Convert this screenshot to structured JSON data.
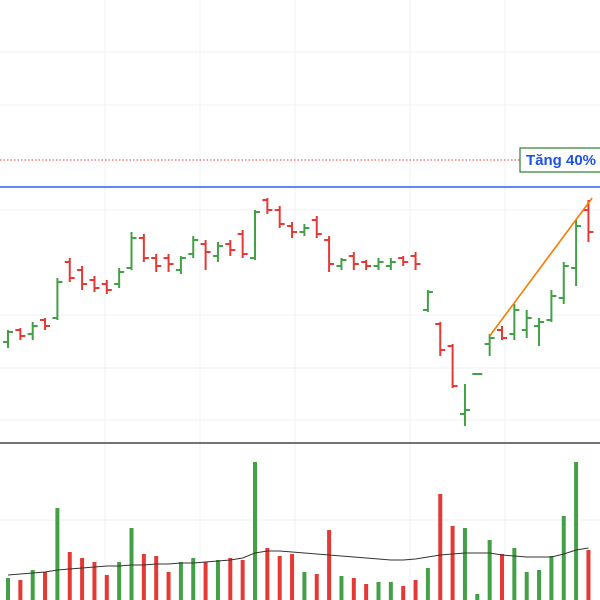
{
  "chart_data": {
    "type": "ohlc",
    "ylim": [
      0,
      440
    ],
    "volume_ylim": [
      0,
      155
    ],
    "up_color": "#43a047",
    "down_color": "#e53935",
    "open": [
      98,
      110,
      106,
      120,
      122,
      178,
      170,
      160,
      156,
      156,
      172,
      202,
      182,
      182,
      170,
      186,
      196,
      184,
      196,
      206,
      182,
      240,
      230,
      214,
      208,
      220,
      200,
      174,
      184,
      178,
      174,
      174,
      182,
      184,
      130,
      116,
      94,
      26,
      66,
      96,
      110,
      106,
      110,
      114,
      120,
      142,
      172,
      230
    ],
    "high": [
      110,
      112,
      118,
      122,
      162,
      182,
      174,
      164,
      160,
      172,
      208,
      206,
      186,
      186,
      184,
      204,
      200,
      198,
      200,
      210,
      230,
      242,
      234,
      218,
      216,
      224,
      204,
      182,
      188,
      180,
      182,
      182,
      184,
      188,
      150,
      118,
      96,
      56,
      67,
      106,
      114,
      136,
      130,
      122,
      150,
      178,
      220,
      240
    ],
    "low": [
      92,
      100,
      100,
      110,
      120,
      158,
      150,
      148,
      146,
      152,
      170,
      178,
      168,
      168,
      166,
      182,
      170,
      178,
      184,
      182,
      180,
      226,
      212,
      202,
      204,
      202,
      168,
      170,
      170,
      170,
      170,
      170,
      174,
      170,
      128,
      84,
      52,
      14,
      65,
      84,
      100,
      100,
      102,
      94,
      118,
      136,
      154,
      198
    ],
    "close": [
      108,
      104,
      114,
      114,
      158,
      162,
      156,
      152,
      150,
      168,
      202,
      182,
      174,
      176,
      182,
      200,
      188,
      194,
      190,
      186,
      228,
      230,
      216,
      208,
      212,
      206,
      176,
      180,
      176,
      174,
      178,
      178,
      178,
      176,
      148,
      90,
      54,
      30,
      66,
      102,
      102,
      130,
      122,
      118,
      144,
      174,
      214,
      208
    ],
    "volume": [
      22,
      20,
      30,
      28,
      92,
      48,
      42,
      38,
      25,
      38,
      72,
      46,
      44,
      28,
      38,
      42,
      38,
      40,
      42,
      40,
      138,
      52,
      44,
      46,
      28,
      26,
      70,
      24,
      22,
      16,
      18,
      18,
      14,
      20,
      32,
      106,
      74,
      72,
      6,
      60,
      46,
      52,
      28,
      30,
      44,
      84,
      138,
      50
    ],
    "volume_ma": [
      25,
      26,
      27,
      28,
      30,
      31,
      32,
      33,
      34,
      34,
      35,
      35,
      36,
      36,
      37,
      37,
      38,
      39,
      40,
      42,
      47,
      49,
      49,
      48,
      47,
      46,
      45,
      44,
      43,
      42,
      41,
      40,
      40,
      41,
      43,
      45,
      46,
      47,
      47,
      47,
      45,
      44,
      43,
      43,
      43,
      46,
      50,
      52
    ],
    "volume_ma_color": "#333333",
    "hlines": [
      {
        "value": 253,
        "color": "#2962ff",
        "style": "solid"
      },
      {
        "value": 280,
        "color": "#e53935",
        "style": "dotted"
      }
    ],
    "trendline": {
      "color": "#f57c00",
      "x": [
        39,
        47.3
      ],
      "y": [
        104,
        242
      ]
    },
    "annotation": {
      "text": "Tăng 40%",
      "color": "#1e53e5",
      "border": "#2e7d32"
    }
  }
}
